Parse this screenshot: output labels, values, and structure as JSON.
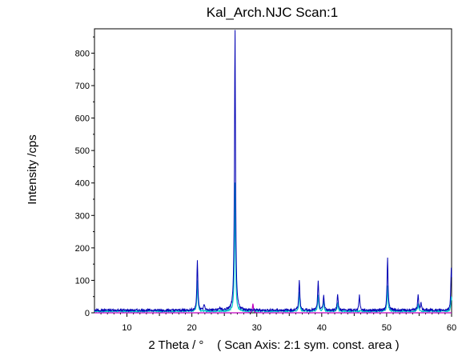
{
  "chart_data": {
    "type": "line",
    "title": "Kal_Arch.NJC Scan:1",
    "xlabel": "2 Theta / °    ( Scan Axis: 2:1 sym. const. area )",
    "ylabel": "Intensity /cps",
    "xlim": [
      5,
      60
    ],
    "ylim": [
      0,
      875
    ],
    "x_ticks": [
      10,
      20,
      30,
      40,
      50,
      60
    ],
    "y_ticks": [
      0,
      100,
      200,
      300,
      400,
      500,
      600,
      700,
      800
    ],
    "grid": false,
    "legend": "none",
    "background": 8,
    "series": [
      {
        "color": "#0000b4",
        "peaks": [
          [
            20.85,
            155
          ],
          [
            21.9,
            18
          ],
          [
            24.3,
            8
          ],
          [
            26.64,
            875
          ],
          [
            36.55,
            95
          ],
          [
            39.45,
            88
          ],
          [
            40.3,
            45
          ],
          [
            42.45,
            52
          ],
          [
            45.8,
            45
          ],
          [
            50.14,
            162
          ],
          [
            54.85,
            50
          ],
          [
            55.3,
            20
          ],
          [
            59.95,
            130
          ]
        ]
      },
      {
        "color": "#00c8c8",
        "peaks": [
          [
            20.85,
            95
          ],
          [
            26.64,
            400
          ],
          [
            36.55,
            60
          ],
          [
            39.45,
            50
          ],
          [
            40.3,
            30
          ],
          [
            42.45,
            25
          ],
          [
            50.14,
            80
          ],
          [
            54.85,
            22
          ],
          [
            59.95,
            45
          ]
        ]
      },
      {
        "color": "#c000c0",
        "peaks": [
          [
            29.4,
            28
          ]
        ]
      }
    ]
  }
}
